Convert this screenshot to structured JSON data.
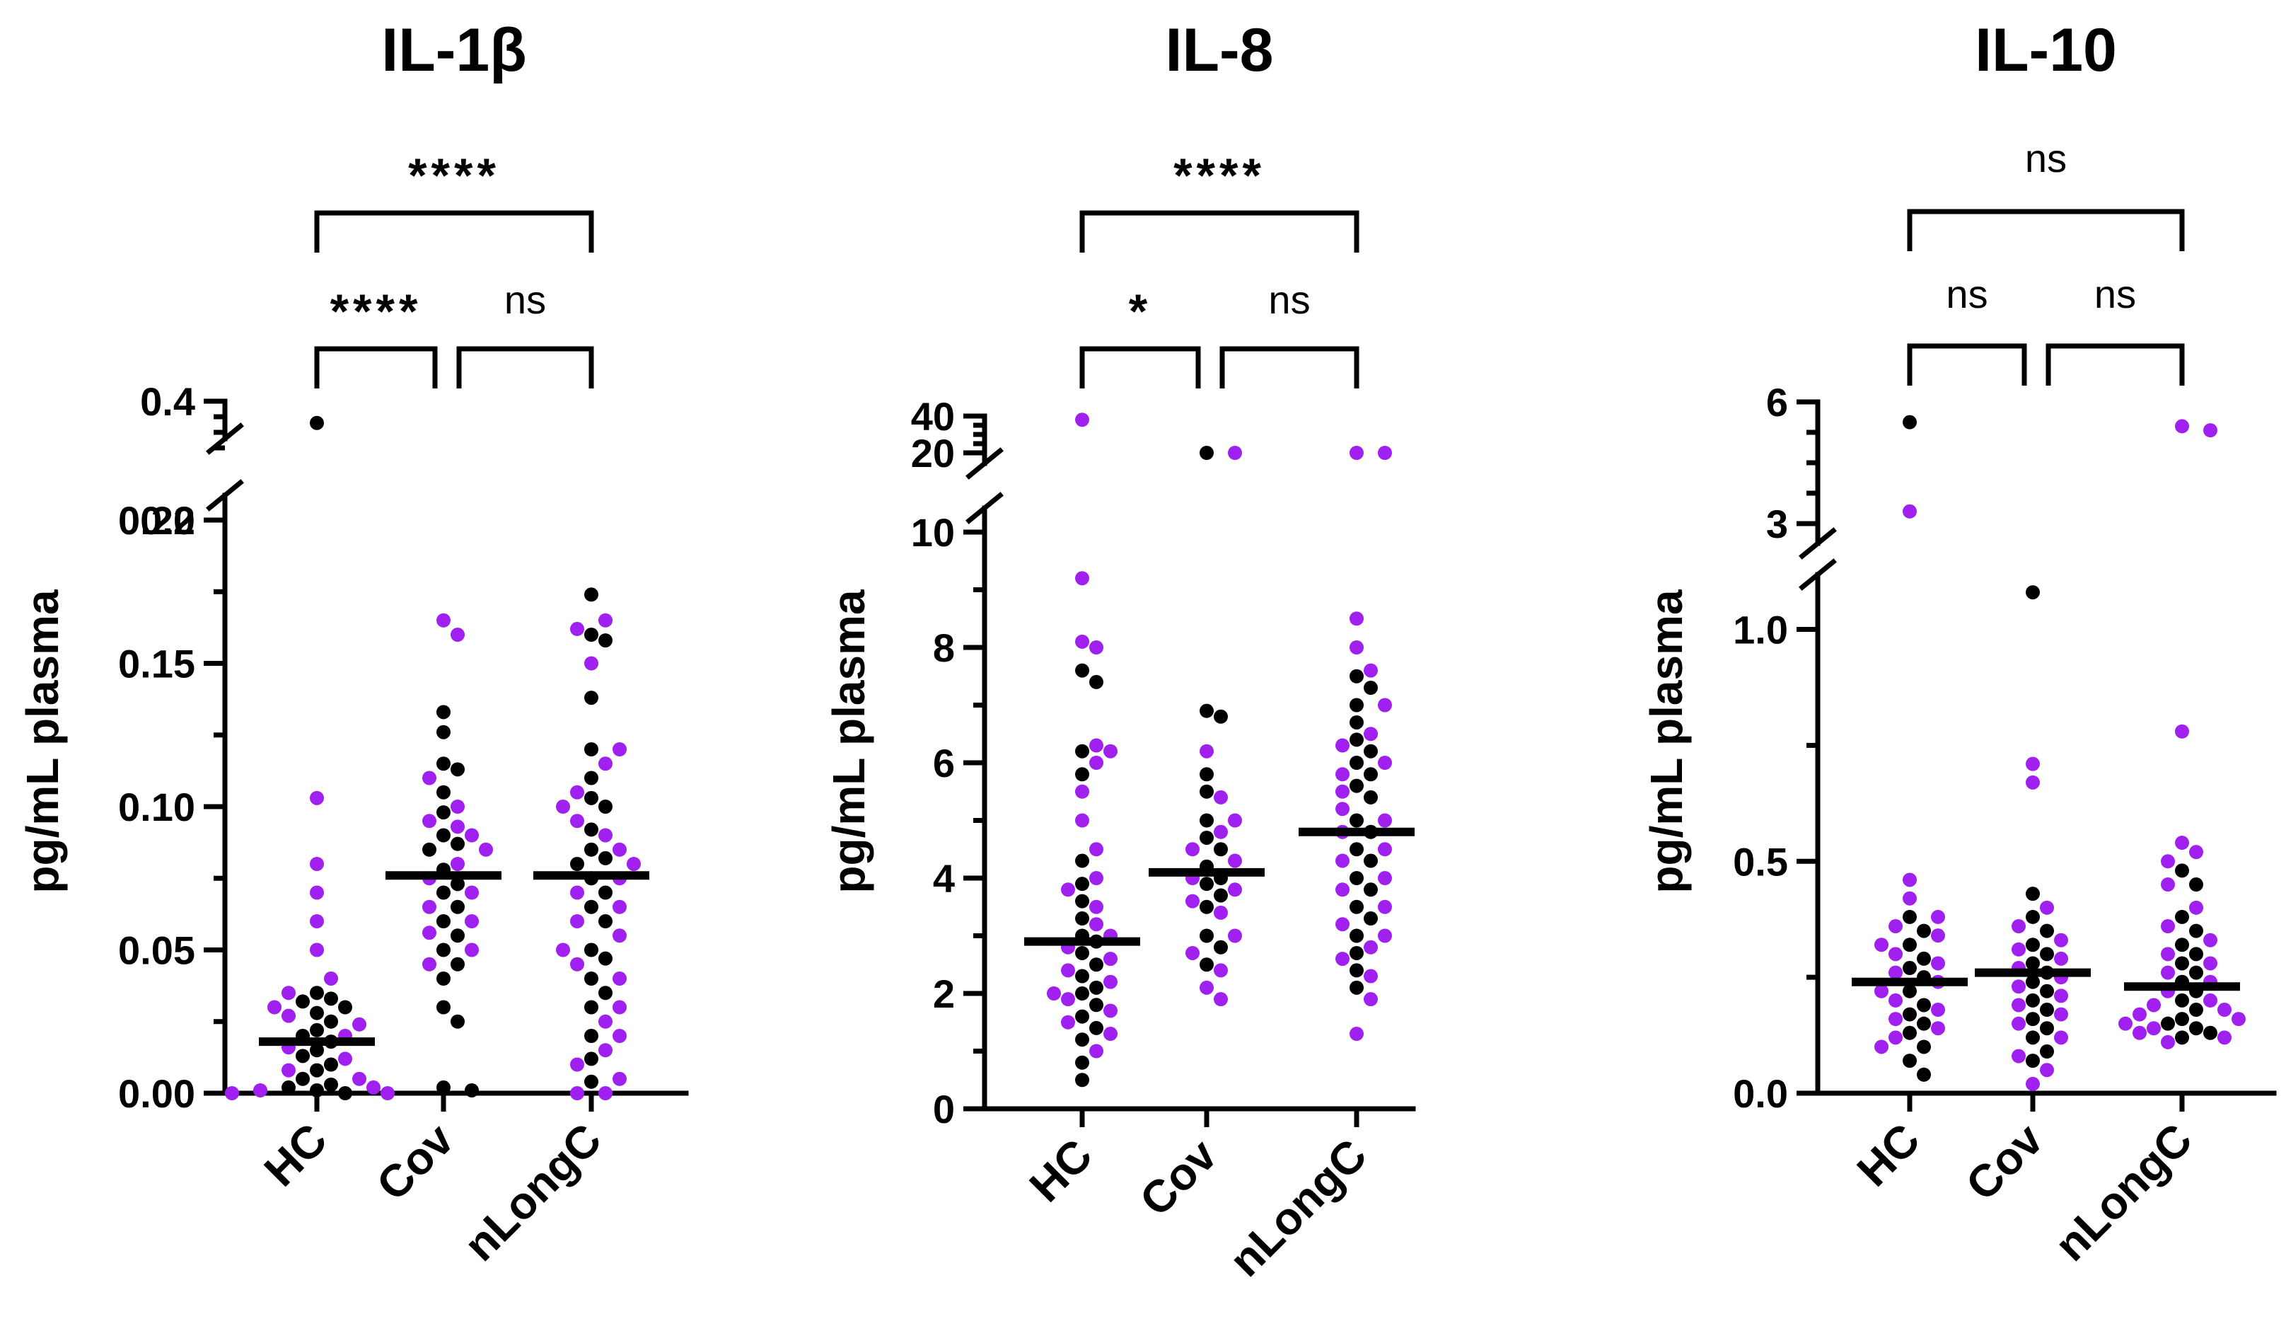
{
  "colors": {
    "black": "#000000",
    "purple": "#a020f0"
  },
  "chart_data": [
    {
      "type": "scatter",
      "title": "IL-1β",
      "ylabel": "pg/mL plasma",
      "categories": [
        "HC",
        "Cov",
        "nLongC"
      ],
      "y_axis": {
        "lower": {
          "range": [
            0,
            0.2
          ],
          "ticks": [
            "0.00",
            "0.05",
            "0.10",
            "0.15",
            "0.20"
          ]
        },
        "upper": {
          "range": [
            0.2,
            0.4
          ],
          "ticks": [
            "0.2",
            "0.4"
          ]
        }
      },
      "significance": [
        {
          "from": "HC",
          "to": "Cov",
          "label": "****"
        },
        {
          "from": "Cov",
          "to": "nLongC",
          "label": "ns"
        },
        {
          "from": "HC",
          "to": "nLongC",
          "label": "****"
        }
      ],
      "medians": [
        0.018,
        0.076,
        0.076
      ],
      "groups": [
        {
          "name": "HC",
          "black": [
            0.33,
            0.035,
            0.033,
            0.032,
            0.03,
            0.028,
            0.025,
            0.022,
            0.02,
            0.018,
            0.015,
            0.013,
            0.01,
            0.008,
            0.005,
            0.003,
            0.002,
            0.001,
            0.0
          ],
          "purple": [
            0.103,
            0.08,
            0.07,
            0.06,
            0.05,
            0.04,
            0.035,
            0.03,
            0.027,
            0.024,
            0.02,
            0.016,
            0.012,
            0.008,
            0.005,
            0.002,
            0.001,
            0.0,
            0.0
          ]
        },
        {
          "name": "Cov",
          "black": [
            0.133,
            0.126,
            0.115,
            0.113,
            0.105,
            0.098,
            0.09,
            0.087,
            0.085,
            0.078,
            0.073,
            0.07,
            0.065,
            0.06,
            0.055,
            0.05,
            0.045,
            0.04,
            0.03,
            0.025,
            0.002,
            0.001
          ],
          "purple": [
            0.165,
            0.16,
            0.11,
            0.1,
            0.095,
            0.093,
            0.09,
            0.085,
            0.08,
            0.075,
            0.07,
            0.065,
            0.06,
            0.056,
            0.05,
            0.045
          ]
        },
        {
          "name": "nLongC",
          "black": [
            0.174,
            0.16,
            0.158,
            0.138,
            0.12,
            0.11,
            0.103,
            0.1,
            0.092,
            0.085,
            0.082,
            0.08,
            0.075,
            0.07,
            0.065,
            0.06,
            0.05,
            0.047,
            0.04,
            0.035,
            0.03,
            0.02,
            0.012,
            0.004
          ],
          "purple": [
            0.165,
            0.162,
            0.15,
            0.12,
            0.115,
            0.105,
            0.1,
            0.095,
            0.09,
            0.085,
            0.08,
            0.075,
            0.07,
            0.065,
            0.06,
            0.055,
            0.05,
            0.045,
            0.04,
            0.03,
            0.025,
            0.02,
            0.015,
            0.01,
            0.005,
            0.0,
            0.0
          ]
        }
      ]
    },
    {
      "type": "scatter",
      "title": "IL-8",
      "ylabel": "pg/mL plasma",
      "categories": [
        "HC",
        "Cov",
        "nLongC"
      ],
      "y_axis": {
        "lower": {
          "range": [
            0,
            10
          ],
          "ticks": [
            "0",
            "2",
            "4",
            "6",
            "8",
            "10"
          ]
        },
        "upper": {
          "range": [
            20,
            40
          ],
          "ticks": [
            "20",
            "40"
          ]
        }
      },
      "significance": [
        {
          "from": "HC",
          "to": "Cov",
          "label": "*"
        },
        {
          "from": "Cov",
          "to": "nLongC",
          "label": "ns"
        },
        {
          "from": "HC",
          "to": "nLongC",
          "label": "****"
        }
      ],
      "medians": [
        2.9,
        4.1,
        4.8
      ],
      "groups": [
        {
          "name": "HC",
          "black": [
            7.6,
            7.4,
            6.2,
            5.8,
            4.3,
            3.9,
            3.6,
            3.3,
            3.0,
            2.9,
            2.7,
            2.5,
            2.3,
            2.1,
            2.0,
            1.8,
            1.6,
            1.4,
            1.2,
            0.8,
            0.5
          ],
          "purple": [
            38.0,
            9.2,
            8.1,
            8.0,
            6.3,
            6.2,
            6.0,
            5.5,
            5.0,
            4.5,
            4.0,
            3.8,
            3.5,
            3.2,
            3.0,
            2.8,
            2.6,
            2.4,
            2.2,
            2.0,
            1.9,
            1.7,
            1.5,
            1.3,
            1.0
          ]
        },
        {
          "name": "Cov",
          "black": [
            15.0,
            6.9,
            6.8,
            5.8,
            5.5,
            5.0,
            4.7,
            4.5,
            4.2,
            4.0,
            3.9,
            3.7,
            3.5,
            3.0,
            2.8,
            2.5
          ],
          "purple": [
            15.0,
            6.2,
            5.4,
            5.0,
            4.8,
            4.5,
            4.3,
            4.0,
            3.8,
            3.6,
            3.4,
            3.0,
            2.7,
            2.4,
            2.1,
            1.9
          ]
        },
        {
          "name": "nLongC",
          "black": [
            7.5,
            7.3,
            7.0,
            6.7,
            6.4,
            6.2,
            6.0,
            5.8,
            5.6,
            5.4,
            5.0,
            4.8,
            4.5,
            4.3,
            4.0,
            3.8,
            3.5,
            3.3,
            3.0,
            2.7,
            2.4,
            2.1
          ],
          "purple": [
            15.0,
            15.0,
            8.5,
            8.0,
            7.6,
            7.0,
            6.5,
            6.3,
            6.0,
            5.8,
            5.5,
            5.2,
            5.0,
            4.8,
            4.5,
            4.3,
            4.0,
            3.8,
            3.5,
            3.2,
            3.0,
            2.8,
            2.6,
            2.3,
            1.9,
            1.3
          ]
        }
      ]
    },
    {
      "type": "scatter",
      "title": "IL-10",
      "ylabel": "pg/mL plasma",
      "categories": [
        "HC",
        "Cov",
        "nLongC"
      ],
      "y_axis": {
        "lower": {
          "range": [
            0,
            1.1
          ],
          "ticks": [
            "0.0",
            "0.5",
            "1.0"
          ]
        },
        "upper": {
          "range": [
            3,
            6
          ],
          "ticks": [
            "3",
            "6"
          ]
        }
      },
      "significance": [
        {
          "from": "HC",
          "to": "Cov",
          "label": "ns"
        },
        {
          "from": "Cov",
          "to": "nLongC",
          "label": "ns"
        },
        {
          "from": "HC",
          "to": "nLongC",
          "label": "ns"
        }
      ],
      "medians": [
        0.24,
        0.26,
        0.23
      ],
      "groups": [
        {
          "name": "HC",
          "black": [
            5.5,
            0.38,
            0.35,
            0.32,
            0.29,
            0.27,
            0.25,
            0.22,
            0.19,
            0.17,
            0.15,
            0.13,
            0.1,
            0.07,
            0.04
          ],
          "purple": [
            3.3,
            0.46,
            0.42,
            0.38,
            0.36,
            0.34,
            0.32,
            0.3,
            0.28,
            0.26,
            0.24,
            0.22,
            0.2,
            0.18,
            0.16,
            0.14,
            0.12,
            0.1
          ]
        },
        {
          "name": "Cov",
          "black": [
            1.08,
            0.43,
            0.38,
            0.35,
            0.32,
            0.3,
            0.28,
            0.26,
            0.24,
            0.22,
            0.2,
            0.18,
            0.16,
            0.14,
            0.12,
            0.09,
            0.07
          ],
          "purple": [
            0.71,
            0.67,
            0.4,
            0.36,
            0.33,
            0.31,
            0.29,
            0.27,
            0.25,
            0.23,
            0.21,
            0.19,
            0.17,
            0.15,
            0.12,
            0.08,
            0.05,
            0.02
          ]
        },
        {
          "name": "nLongC",
          "black": [
            0.48,
            0.45,
            0.38,
            0.35,
            0.32,
            0.3,
            0.28,
            0.26,
            0.24,
            0.22,
            0.2,
            0.18,
            0.16,
            0.15,
            0.14,
            0.13,
            0.12
          ],
          "purple": [
            5.4,
            5.3,
            0.78,
            0.54,
            0.52,
            0.5,
            0.45,
            0.4,
            0.36,
            0.33,
            0.3,
            0.28,
            0.26,
            0.24,
            0.22,
            0.2,
            0.19,
            0.18,
            0.17,
            0.16,
            0.15,
            0.14,
            0.13,
            0.12,
            0.11
          ]
        }
      ]
    }
  ]
}
